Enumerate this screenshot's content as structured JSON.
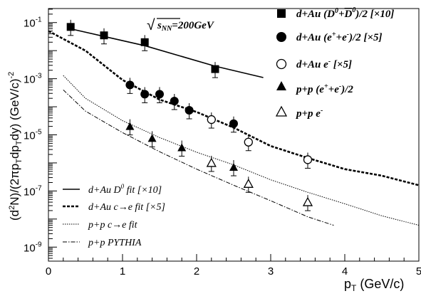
{
  "chart_data": {
    "type": "scatter",
    "xlabel": "p_T (GeV/c)",
    "ylabel": "(d²N)/(2πp_T dp_T dy) (GeV/c)⁻²",
    "xlim": [
      0,
      5
    ],
    "ylim_log10": [
      -9.5,
      -0.5
    ],
    "y_scale": "log",
    "x_ticks": [
      0,
      1,
      2,
      3,
      4,
      5
    ],
    "y_tick_exponents": [
      -9,
      -7,
      -5,
      -3,
      -1
    ],
    "annotation": "√s_NN=200GeV",
    "points": [
      {
        "label": "d+Au (D⁰+D̄⁰)/2 [×10]",
        "marker": "square-filled",
        "x": [
          0.3,
          0.75,
          1.3,
          2.25
        ],
        "y": [
          0.07,
          0.035,
          0.02,
          0.0022
        ]
      },
      {
        "label": "d+Au (e⁺+e⁻)/2 [×5]",
        "marker": "circle-filled",
        "x": [
          1.1,
          1.3,
          1.5,
          1.7,
          1.9,
          2.5
        ],
        "y": [
          0.0006,
          0.00028,
          0.00028,
          0.00016,
          7.5e-05,
          2.5e-05
        ]
      },
      {
        "label": "d+Au e⁻ [×5]",
        "marker": "circle-open",
        "x": [
          2.2,
          2.7,
          3.5
        ],
        "y": [
          3.5e-05,
          5.5e-06,
          1.3e-06
        ]
      },
      {
        "label": "p+p (e⁺+e⁻)/2",
        "marker": "triangle-filled",
        "x": [
          1.1,
          1.4,
          1.8,
          2.5
        ],
        "y": [
          2e-05,
          7.5e-06,
          3.5e-06,
          7e-07
        ]
      },
      {
        "label": "p+p e⁻",
        "marker": "triangle-open",
        "x": [
          2.2,
          2.7,
          3.5
        ],
        "y": [
          1e-06,
          1.8e-07,
          4e-08
        ]
      }
    ],
    "curves": [
      {
        "label": "d+Au D⁰ fit [×10]",
        "style": "solid",
        "x": [
          0.3,
          0.75,
          1.3,
          2.25,
          2.9
        ],
        "y": [
          0.06,
          0.032,
          0.015,
          0.0028,
          0.0011
        ]
      },
      {
        "label": "d+Au c→e fit [×5]",
        "style": "dashed",
        "x": [
          0.0,
          0.5,
          1.0,
          1.5,
          2.0,
          2.5,
          3.0,
          3.5,
          4.0,
          4.5,
          5.0
        ],
        "y": [
          0.05,
          0.01,
          0.0009,
          0.00018,
          6.5e-05,
          1.8e-05,
          4e-06,
          1.5e-06,
          6e-07,
          3.5e-07,
          1.6e-07
        ]
      },
      {
        "label": "p+p c→e fit",
        "style": "dotted",
        "x": [
          0.2,
          0.5,
          1.0,
          1.5,
          2.0,
          2.5,
          3.0,
          3.5,
          4.0,
          4.5,
          5.0
        ],
        "y": [
          0.0013,
          0.0002,
          3.2e-05,
          8e-06,
          2.4e-06,
          8.5e-07,
          2.5e-07,
          9e-08,
          3.5e-08,
          1.3e-08,
          6e-09
        ]
      },
      {
        "label": "p+p PYTHIA",
        "style": "dashdot",
        "x": [
          0.2,
          0.5,
          1.0,
          1.5,
          2.0,
          2.5,
          3.0,
          3.5,
          3.85
        ],
        "y": [
          0.0004,
          7e-05,
          1.2e-05,
          2.5e-06,
          6e-07,
          1.6e-07,
          4.5e-08,
          1.2e-08,
          6e-09
        ]
      }
    ],
    "legend_placement": [
      "top-right",
      "bottom-left"
    ]
  }
}
